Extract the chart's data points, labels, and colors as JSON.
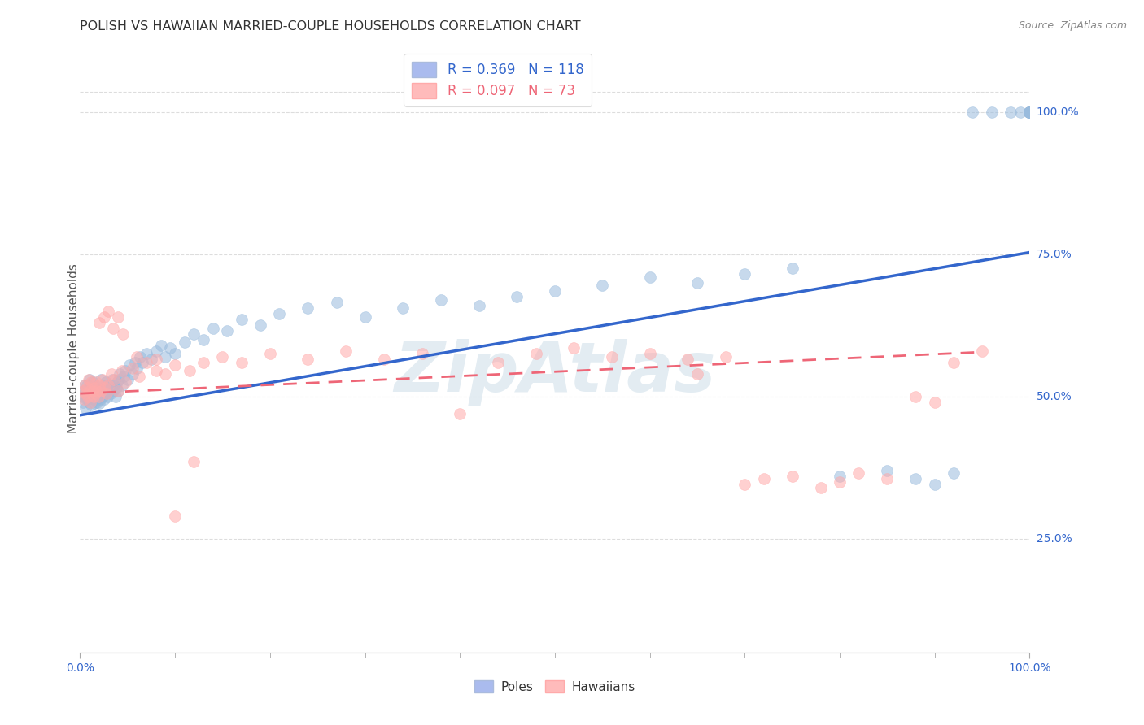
{
  "title": "POLISH VS HAWAIIAN MARRIED-COUPLE HOUSEHOLDS CORRELATION CHART",
  "source": "Source: ZipAtlas.com",
  "ylabel": "Married-couple Households",
  "watermark": "ZipAtlas",
  "legend_poles_R": "0.369",
  "legend_poles_N": "118",
  "legend_hawaiians_R": "0.097",
  "legend_hawaiians_N": "73",
  "blue_scatter_color": "#99BBDD",
  "pink_scatter_color": "#FFAAAA",
  "blue_line_color": "#3366CC",
  "pink_line_color": "#EE6677",
  "title_color": "#333333",
  "ylabel_color": "#555555",
  "tick_label_color": "#3366CC",
  "source_color": "#888888",
  "background_color": "#FFFFFF",
  "grid_color": "#DDDDDD",
  "watermark_color": "#CCDDE8",
  "blue_legend_patch": "#AABBEE",
  "pink_legend_patch": "#FFBBBB",
  "marker_size": 100,
  "marker_alpha": 0.55,
  "xlim": [
    0.0,
    1.0
  ],
  "ylim": [
    0.05,
    1.12
  ],
  "ytick_values": [
    0.25,
    0.5,
    0.75,
    1.0
  ],
  "ytick_labels": [
    "25.0%",
    "50.0%",
    "75.0%",
    "100.0%"
  ],
  "xtick_values": [
    0.0,
    1.0
  ],
  "xtick_labels": [
    "0.0%",
    "100.0%"
  ],
  "blue_line_x": [
    0.0,
    1.0
  ],
  "blue_line_y": [
    0.467,
    0.753
  ],
  "pink_line_x": [
    0.0,
    0.95
  ],
  "pink_line_y": [
    0.505,
    0.578
  ],
  "poles_x": [
    0.002,
    0.003,
    0.004,
    0.005,
    0.006,
    0.006,
    0.007,
    0.007,
    0.008,
    0.009,
    0.01,
    0.01,
    0.011,
    0.011,
    0.012,
    0.012,
    0.013,
    0.013,
    0.014,
    0.014,
    0.015,
    0.015,
    0.016,
    0.016,
    0.017,
    0.017,
    0.018,
    0.018,
    0.019,
    0.02,
    0.02,
    0.021,
    0.021,
    0.022,
    0.022,
    0.023,
    0.024,
    0.025,
    0.025,
    0.026,
    0.027,
    0.027,
    0.028,
    0.029,
    0.03,
    0.031,
    0.032,
    0.033,
    0.034,
    0.035,
    0.036,
    0.037,
    0.038,
    0.039,
    0.04,
    0.041,
    0.042,
    0.044,
    0.046,
    0.048,
    0.05,
    0.052,
    0.055,
    0.058,
    0.06,
    0.063,
    0.066,
    0.07,
    0.075,
    0.08,
    0.085,
    0.09,
    0.095,
    0.1,
    0.11,
    0.12,
    0.13,
    0.14,
    0.155,
    0.17,
    0.19,
    0.21,
    0.24,
    0.27,
    0.3,
    0.34,
    0.38,
    0.42,
    0.46,
    0.5,
    0.55,
    0.6,
    0.65,
    0.7,
    0.75,
    0.8,
    0.85,
    0.88,
    0.9,
    0.92,
    0.94,
    0.96,
    0.98,
    0.99,
    1.0,
    1.0,
    1.0,
    1.0,
    1.0,
    1.0,
    1.0,
    1.0,
    1.0,
    1.0,
    1.0,
    1.0,
    1.0,
    1.0
  ],
  "poles_y": [
    0.5,
    0.49,
    0.51,
    0.52,
    0.48,
    0.51,
    0.495,
    0.52,
    0.505,
    0.515,
    0.49,
    0.53,
    0.5,
    0.52,
    0.485,
    0.51,
    0.5,
    0.525,
    0.495,
    0.515,
    0.488,
    0.51,
    0.495,
    0.52,
    0.5,
    0.515,
    0.49,
    0.51,
    0.505,
    0.488,
    0.51,
    0.495,
    0.515,
    0.5,
    0.53,
    0.51,
    0.5,
    0.495,
    0.52,
    0.51,
    0.505,
    0.525,
    0.515,
    0.5,
    0.51,
    0.52,
    0.505,
    0.515,
    0.53,
    0.51,
    0.52,
    0.5,
    0.515,
    0.525,
    0.51,
    0.53,
    0.54,
    0.52,
    0.535,
    0.545,
    0.53,
    0.555,
    0.54,
    0.56,
    0.55,
    0.57,
    0.56,
    0.575,
    0.565,
    0.58,
    0.59,
    0.57,
    0.585,
    0.575,
    0.595,
    0.61,
    0.6,
    0.62,
    0.615,
    0.635,
    0.625,
    0.645,
    0.655,
    0.665,
    0.64,
    0.655,
    0.67,
    0.66,
    0.675,
    0.685,
    0.695,
    0.71,
    0.7,
    0.715,
    0.725,
    0.36,
    0.37,
    0.355,
    0.345,
    0.365,
    1.0,
    1.0,
    1.0,
    1.0,
    1.0,
    1.0,
    1.0,
    1.0,
    1.0,
    1.0,
    1.0,
    1.0,
    1.0,
    1.0,
    1.0,
    1.0,
    1.0,
    1.0
  ],
  "hawaiians_x": [
    0.003,
    0.004,
    0.005,
    0.006,
    0.007,
    0.008,
    0.009,
    0.01,
    0.011,
    0.012,
    0.013,
    0.014,
    0.015,
    0.016,
    0.017,
    0.018,
    0.019,
    0.02,
    0.022,
    0.024,
    0.026,
    0.028,
    0.03,
    0.033,
    0.036,
    0.04,
    0.044,
    0.048,
    0.055,
    0.062,
    0.07,
    0.08,
    0.09,
    0.1,
    0.115,
    0.13,
    0.15,
    0.17,
    0.2,
    0.24,
    0.28,
    0.32,
    0.36,
    0.4,
    0.44,
    0.48,
    0.52,
    0.56,
    0.6,
    0.64,
    0.65,
    0.68,
    0.7,
    0.72,
    0.75,
    0.78,
    0.8,
    0.82,
    0.85,
    0.88,
    0.9,
    0.92,
    0.95,
    0.02,
    0.025,
    0.03,
    0.035,
    0.04,
    0.045,
    0.06,
    0.08,
    0.1,
    0.12
  ],
  "hawaiians_y": [
    0.51,
    0.495,
    0.52,
    0.505,
    0.515,
    0.5,
    0.53,
    0.51,
    0.49,
    0.525,
    0.51,
    0.5,
    0.515,
    0.505,
    0.525,
    0.51,
    0.5,
    0.52,
    0.51,
    0.53,
    0.515,
    0.505,
    0.52,
    0.54,
    0.53,
    0.51,
    0.545,
    0.525,
    0.55,
    0.535,
    0.56,
    0.545,
    0.54,
    0.555,
    0.545,
    0.56,
    0.57,
    0.56,
    0.575,
    0.565,
    0.58,
    0.565,
    0.575,
    0.47,
    0.56,
    0.575,
    0.585,
    0.57,
    0.575,
    0.565,
    0.54,
    0.57,
    0.345,
    0.355,
    0.36,
    0.34,
    0.35,
    0.365,
    0.355,
    0.5,
    0.49,
    0.56,
    0.58,
    0.63,
    0.64,
    0.65,
    0.62,
    0.64,
    0.61,
    0.57,
    0.565,
    0.29,
    0.385
  ]
}
